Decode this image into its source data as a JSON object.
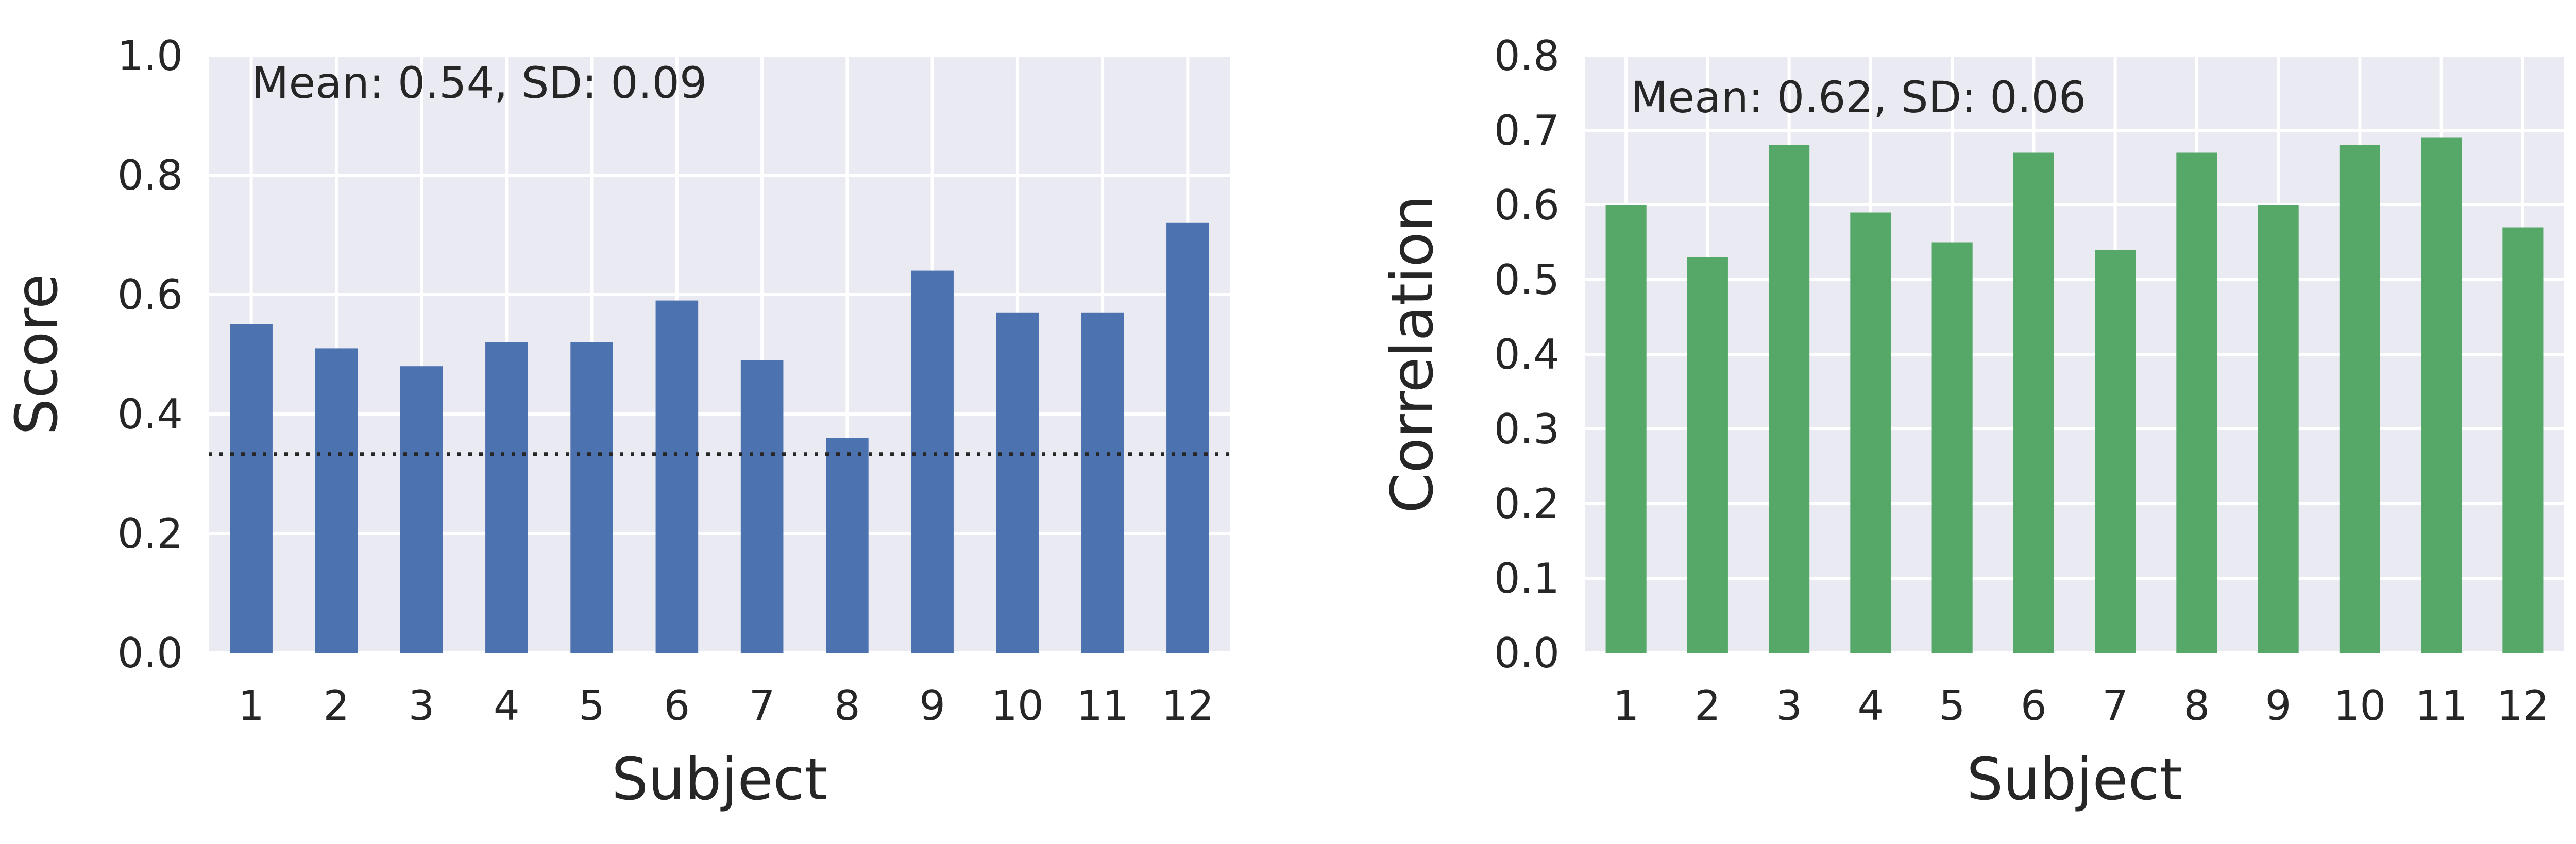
{
  "chart_data": [
    {
      "type": "bar",
      "xlabel": "Subject",
      "ylabel": "Score",
      "categories": [
        "1",
        "2",
        "3",
        "4",
        "5",
        "6",
        "7",
        "8",
        "9",
        "10",
        "11",
        "12"
      ],
      "values": [
        0.55,
        0.51,
        0.48,
        0.52,
        0.52,
        0.59,
        0.49,
        0.36,
        0.64,
        0.57,
        0.57,
        0.72
      ],
      "ylim": [
        0.0,
        1.0
      ],
      "yticks": [
        "0.0",
        "0.2",
        "0.4",
        "0.6",
        "0.8",
        "1.0"
      ],
      "annotation": "Mean: 0.54, SD: 0.09",
      "reference_line": 0.333,
      "grid": true,
      "color": "#4c72b0",
      "background": "#eaeaf2"
    },
    {
      "type": "bar",
      "xlabel": "Subject",
      "ylabel": "Correlation",
      "categories": [
        "1",
        "2",
        "3",
        "4",
        "5",
        "6",
        "7",
        "8",
        "9",
        "10",
        "11",
        "12"
      ],
      "values": [
        0.6,
        0.53,
        0.68,
        0.59,
        0.55,
        0.67,
        0.54,
        0.67,
        0.6,
        0.68,
        0.69,
        0.57
      ],
      "ylim": [
        0.0,
        0.8
      ],
      "yticks": [
        "0.0",
        "0.1",
        "0.2",
        "0.3",
        "0.4",
        "0.5",
        "0.6",
        "0.7",
        "0.8"
      ],
      "annotation": "Mean: 0.62, SD: 0.06",
      "grid": true,
      "color": "#55a868",
      "background": "#eaeaf2"
    }
  ]
}
